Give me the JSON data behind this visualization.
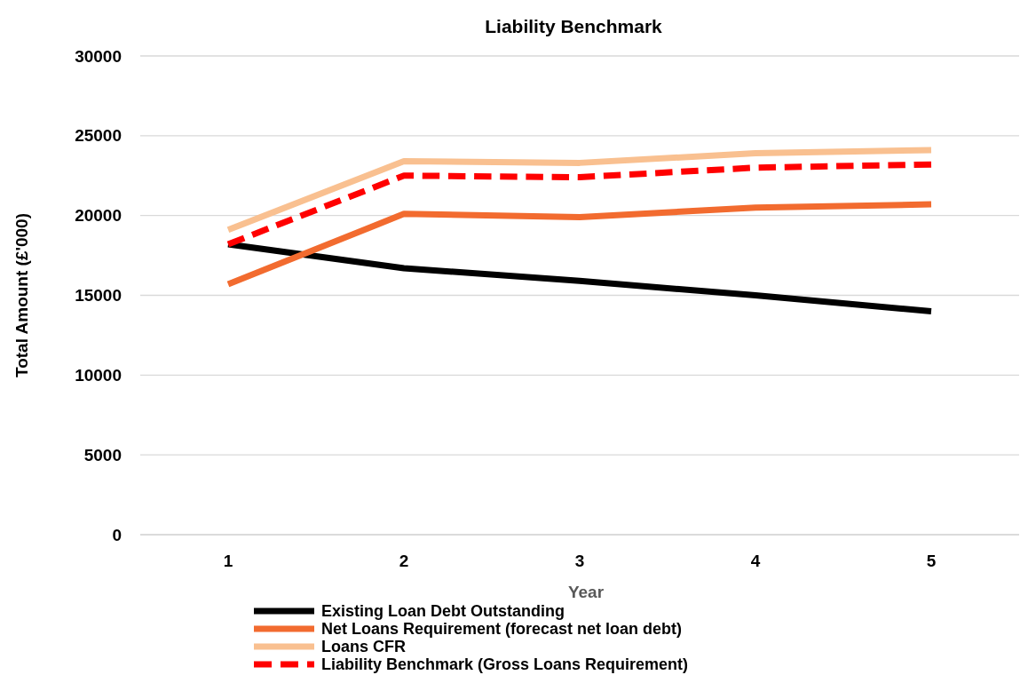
{
  "chart_data": {
    "type": "line",
    "title": "Liability Benchmark",
    "xlabel": "Year",
    "ylabel": "Total Amount (£'000)",
    "categories": [
      "1",
      "2",
      "3",
      "4",
      "5"
    ],
    "series": [
      {
        "name": "Existing Loan Debt Outstanding",
        "color": "#000000",
        "values": [
          18200,
          16700,
          15900,
          15000,
          14000
        ]
      },
      {
        "name": "Net Loans Requirement (forecast net loan debt)",
        "color": "#f26b2f",
        "values": [
          15700,
          20100,
          19900,
          20500,
          20700
        ]
      },
      {
        "name": "Loans CFR",
        "color": "#f9c090",
        "values": [
          19100,
          23400,
          23300,
          23900,
          24100
        ]
      },
      {
        "name": "Liability Benchmark (Gross Loans Requirement)",
        "color": "#ff0000",
        "values": [
          18200,
          22500,
          22400,
          23000,
          23200
        ],
        "line_style": "dashed"
      }
    ],
    "ylim": [
      0,
      30000
    ],
    "yticks": [
      0,
      5000,
      10000,
      15000,
      20000,
      25000,
      30000
    ],
    "grid": "y",
    "legend": "bottom",
    "marker": "none"
  }
}
